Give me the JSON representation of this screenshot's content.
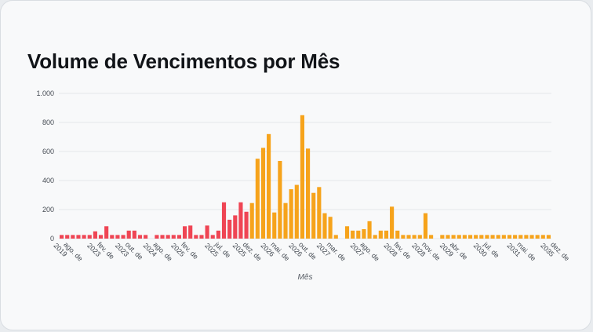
{
  "title": "Volume de Vencimentos por Mês",
  "colors": {
    "past": "#ef4554",
    "future": "#f6a31b",
    "grid": "#e3e6ea"
  },
  "chart_data": {
    "type": "bar",
    "title": "Volume de Vencimentos por Mês",
    "xlabel": "Mês",
    "ylabel": "",
    "ylim": [
      0,
      1000
    ],
    "yticks": [
      0,
      200,
      400,
      600,
      800,
      1000
    ],
    "ytick_labels": [
      "0",
      "200",
      "400",
      "600",
      "800",
      "1.000"
    ],
    "grid": true,
    "legend": "none",
    "xtick_labels": [
      "ago. de 2019",
      "fev. de 2023",
      "out. de 2023",
      "ago. de 2024",
      "fev. de 2025",
      "jul. de 2025",
      "dez. de 2025",
      "mai. de 2026",
      "out. de 2026",
      "mar. de 2027",
      "ago. de 2027",
      "fev. de 2028",
      "nov. de 2028",
      "abr. de 2029",
      "jul. de 2030",
      "mai. de 2031",
      "dez. de 2035"
    ],
    "xtick_index": [
      0,
      6,
      11,
      16,
      21,
      27,
      32,
      37,
      42,
      47,
      53,
      59,
      64,
      69,
      75,
      81,
      87
    ],
    "values": [
      25,
      25,
      25,
      25,
      25,
      25,
      50,
      25,
      85,
      25,
      25,
      25,
      55,
      55,
      25,
      25,
      0,
      25,
      25,
      25,
      25,
      25,
      85,
      90,
      25,
      25,
      90,
      25,
      55,
      250,
      130,
      160,
      250,
      185,
      245,
      550,
      625,
      720,
      180,
      535,
      245,
      340,
      370,
      850,
      620,
      315,
      355,
      175,
      150,
      25,
      0,
      85,
      55,
      55,
      65,
      120,
      25,
      55,
      55,
      220,
      55,
      25,
      25,
      25,
      25,
      175,
      25,
      0,
      25,
      25,
      25,
      25,
      25,
      25,
      25,
      25,
      25,
      25,
      25,
      25,
      25,
      25,
      25,
      25,
      25,
      25,
      25,
      25
    ],
    "split_index": 34
  }
}
